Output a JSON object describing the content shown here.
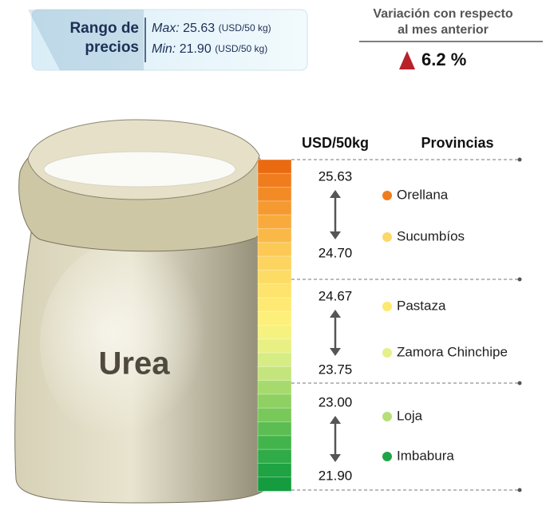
{
  "header": {
    "range_label_line1": "Rango de",
    "range_label_line2": "precios",
    "max_label": "Max:",
    "max_value": "25.63",
    "max_unit": "(USD/50 kg)",
    "min_label": "Min:",
    "min_value": "21.90",
    "min_unit": "(USD/50 kg)"
  },
  "variation": {
    "title_line1": "Variación con respecto",
    "title_line2": "al mes anterior",
    "value": "6.2 %"
  },
  "product": "Urea",
  "columns": {
    "price": "USD/50kg",
    "provinces": "Provincias"
  },
  "groups": [
    {
      "high": "25.63",
      "low": "24.70",
      "provinces": [
        {
          "name": "Orellana",
          "color": "#ef7d1e"
        },
        {
          "name": "Sucumbíos",
          "color": "#fcd86a"
        }
      ]
    },
    {
      "high": "24.67",
      "low": "23.75",
      "provinces": [
        {
          "name": "Pastaza",
          "color": "#fde870"
        },
        {
          "name": "Zamora Chinchipe",
          "color": "#e5f08a"
        }
      ]
    },
    {
      "high": "23.00",
      "low": "21.90",
      "provinces": [
        {
          "name": "Loja",
          "color": "#b5df77"
        },
        {
          "name": "Imbabura",
          "color": "#1fa548"
        }
      ]
    }
  ]
}
